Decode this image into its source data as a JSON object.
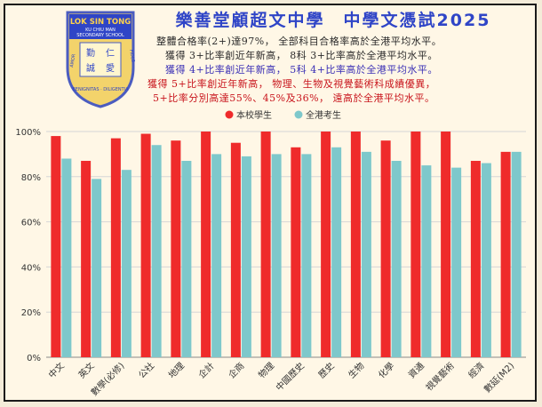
{
  "school": {
    "name_en": "LOK SIN TONG",
    "sub_en1": "KU CHIU MAN",
    "sub_en2": "SECONDARY SCHOOL",
    "chars": [
      "勤",
      "仁",
      "誠",
      "愛"
    ],
    "motto_left": "AMOR",
    "motto_right": "FIDES",
    "motto_bottom": "BENIGNITAS · DILIGENTIA"
  },
  "header": {
    "title": "樂善堂顧超文中學　中學文憑試2025",
    "line1": "整體合格率(2+)達97%， 全部科目合格率高於全港平均水平。",
    "line2": "獲得 3+比率創近年新高， 8科 3+比率高於全港平均水平。",
    "line3": "獲得 4+比率創近年新高， 5科 4+比率高於全港平均水平。",
    "line4": "獲得 5+比率創近年新高， 物理、生物及視覺藝術科成績優異，",
    "line5": "5+比率分別高達55%、45%及36%， 遠高於全港平均水平。"
  },
  "colors": {
    "school": "#ef2b2b",
    "hk": "#7ec8cb",
    "title": "#2f45c7",
    "grid": "#d6d6d6"
  },
  "chart_data": {
    "type": "bar",
    "categories": [
      "中文",
      "英文",
      "數學(必修)",
      "公社",
      "地理",
      "企計",
      "企商",
      "物理",
      "中國歷史",
      "歷史",
      "生物",
      "化學",
      "資通",
      "視覺藝術",
      "經濟",
      "數延(M2)"
    ],
    "series": [
      {
        "name": "本校學生",
        "values": [
          98,
          87,
          97,
          99,
          96,
          100,
          95,
          100,
          93,
          100,
          100,
          96,
          100,
          100,
          87,
          91
        ]
      },
      {
        "name": "全港考生",
        "values": [
          88,
          79,
          83,
          94,
          87,
          90,
          89,
          90,
          90,
          93,
          91,
          87,
          85,
          84,
          86,
          91
        ]
      }
    ],
    "y_ticks": [
      "0%",
      "20%",
      "40%",
      "60%",
      "80%",
      "100%"
    ],
    "ylim": [
      0,
      100
    ],
    "legend": "top-center",
    "grid": true
  }
}
